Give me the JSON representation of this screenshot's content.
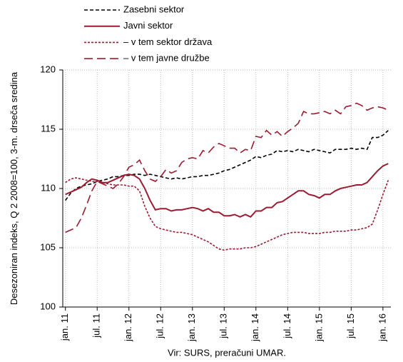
{
  "chart_data": {
    "type": "line",
    "y_label": "Desezoniran indeks, Q 2 2008=100, 3-m. drseča sredina",
    "source": "Vir: SURS, preračuni UMAR.",
    "categories": [
      "jan. 11",
      null,
      null,
      null,
      null,
      null,
      "jul. 11",
      null,
      null,
      null,
      null,
      null,
      "jan. 12",
      null,
      null,
      null,
      null,
      null,
      "jul. 12",
      null,
      null,
      null,
      null,
      null,
      "jan. 13",
      null,
      null,
      null,
      null,
      null,
      "jul. 13",
      null,
      null,
      null,
      null,
      null,
      "jan. 14",
      null,
      null,
      null,
      null,
      null,
      "jul. 14",
      null,
      null,
      null,
      null,
      null,
      "jan. 15",
      null,
      null,
      null,
      null,
      null,
      "jul. 15",
      null,
      null,
      null,
      null,
      null,
      "jan. 16",
      null
    ],
    "series": [
      {
        "name": "Zasebni sektor",
        "color": "#000000",
        "line_style": "dashed",
        "values": [
          109.0,
          109.6,
          110.0,
          110.2,
          110.3,
          110.4,
          110.6,
          110.7,
          110.8,
          111.0,
          111.0,
          111.1,
          111.1,
          111.2,
          111.2,
          111.1,
          111.2,
          111.1,
          111.0,
          110.9,
          110.8,
          110.9,
          110.8,
          110.9,
          111.0,
          111.0,
          111.1,
          111.1,
          111.2,
          111.3,
          111.5,
          111.6,
          111.8,
          112.0,
          112.2,
          112.4,
          112.7,
          112.6,
          112.8,
          112.9,
          113.2,
          113.1,
          113.2,
          113.1,
          113.3,
          113.2,
          113.1,
          113.3,
          113.2,
          113.1,
          113.0,
          113.3,
          113.3,
          113.3,
          113.4,
          113.3,
          113.4,
          113.3,
          114.3,
          114.3,
          114.5,
          114.9
        ]
      },
      {
        "name": "Javni sektor",
        "color": "#9b1b30",
        "line_style": "solid",
        "values": [
          109.5,
          109.7,
          109.9,
          110.1,
          110.5,
          110.8,
          110.7,
          110.5,
          110.5,
          110.7,
          110.9,
          111.1,
          111.2,
          111.1,
          110.8,
          110.0,
          109.0,
          108.2,
          108.3,
          108.3,
          108.1,
          108.2,
          108.2,
          108.3,
          108.4,
          108.3,
          108.1,
          108.3,
          108.0,
          108.0,
          107.7,
          107.7,
          107.8,
          107.6,
          107.8,
          107.6,
          108.1,
          108.1,
          108.4,
          108.4,
          108.8,
          108.9,
          109.2,
          109.5,
          109.8,
          109.8,
          109.5,
          109.4,
          109.2,
          109.5,
          109.5,
          109.8,
          110.0,
          110.1,
          110.2,
          110.3,
          110.3,
          110.5,
          111.0,
          111.5,
          111.9,
          112.1
        ]
      },
      {
        "name": "– v tem sektor država",
        "color": "#9b1b30",
        "line_style": "dotted",
        "values": [
          110.5,
          110.8,
          110.9,
          110.8,
          110.7,
          110.6,
          110.6,
          110.5,
          110.4,
          110.3,
          110.3,
          110.3,
          110.2,
          110.2,
          109.8,
          108.5,
          107.5,
          106.8,
          106.6,
          106.5,
          106.4,
          106.3,
          106.3,
          106.2,
          106.1,
          105.9,
          105.7,
          105.5,
          105.2,
          104.9,
          104.8,
          104.9,
          104.9,
          104.9,
          105.0,
          105.0,
          105.1,
          105.3,
          105.5,
          105.7,
          105.9,
          106.1,
          106.2,
          106.3,
          106.3,
          106.3,
          106.2,
          106.2,
          106.2,
          106.3,
          106.3,
          106.4,
          106.4,
          106.4,
          106.5,
          106.5,
          106.6,
          106.7,
          107.0,
          108.2,
          109.5,
          110.7
        ]
      },
      {
        "name": "– v tem javne družbe",
        "color": "#9b1b30",
        "line_style": "long-dashed",
        "values": [
          106.3,
          106.5,
          106.7,
          107.5,
          108.6,
          109.8,
          110.6,
          110.4,
          110.2,
          110.0,
          110.4,
          111.0,
          111.8,
          112.0,
          112.4,
          111.5,
          110.8,
          110.6,
          111.0,
          111.6,
          111.3,
          111.5,
          112.2,
          112.5,
          112.6,
          112.5,
          113.2,
          113.0,
          113.5,
          113.8,
          113.6,
          113.4,
          113.4,
          113.0,
          113.3,
          113.2,
          114.4,
          114.3,
          114.9,
          114.5,
          114.8,
          114.4,
          114.8,
          115.1,
          115.5,
          116.5,
          116.3,
          116.3,
          116.4,
          116.5,
          116.3,
          116.6,
          116.3,
          116.9,
          117.0,
          117.2,
          117.0,
          116.6,
          116.8,
          116.9,
          116.8,
          116.6
        ]
      }
    ],
    "ylim": [
      100,
      120
    ],
    "yticks": [
      100,
      105,
      110,
      115,
      120
    ],
    "grid": true
  }
}
